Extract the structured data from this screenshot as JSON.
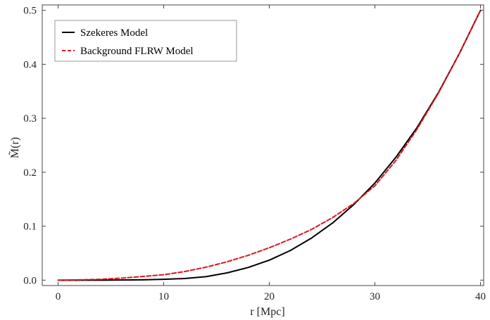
{
  "chart_data": {
    "type": "line",
    "xlabel": "r [Mpc]",
    "ylabel": "M̃(r)",
    "xlim": [
      -1.5,
      40.3
    ],
    "ylim": [
      -0.01,
      0.51
    ],
    "xticks": [
      0,
      10,
      20,
      30,
      40
    ],
    "xtick_labels": [
      "0",
      "10",
      "20",
      "30",
      "40"
    ],
    "yticks": [
      0.0,
      0.1,
      0.2,
      0.3,
      0.4,
      0.5
    ],
    "ytick_labels": [
      "0.0",
      "0.1",
      "0.2",
      "0.3",
      "0.4",
      "0.5"
    ],
    "grid": false,
    "legend_position": "top-left",
    "series": [
      {
        "name": "Szekeres Model",
        "color": "#000000",
        "style": "solid",
        "x": [
          0,
          2,
          4,
          6,
          8,
          10,
          12,
          14,
          16,
          18,
          20,
          22,
          24,
          26,
          28,
          30,
          32,
          34,
          36,
          38,
          40
        ],
        "y": [
          0.0,
          0.0,
          0.0,
          0.0003,
          0.0006,
          0.0015,
          0.003,
          0.0065,
          0.0135,
          0.0235,
          0.037,
          0.055,
          0.078,
          0.106,
          0.14,
          0.18,
          0.228,
          0.283,
          0.347,
          0.42,
          0.5
        ]
      },
      {
        "name": "Background FLRW Model",
        "color": "#e0141e",
        "style": "dashed",
        "x": [
          0,
          2,
          4,
          6,
          8,
          10,
          12,
          14,
          16,
          18,
          20,
          22,
          24,
          26,
          28,
          30,
          32,
          34,
          36,
          38,
          40
        ],
        "y": [
          0.0,
          0.0006,
          0.0016,
          0.0037,
          0.0068,
          0.01,
          0.016,
          0.024,
          0.034,
          0.046,
          0.06,
          0.076,
          0.094,
          0.116,
          0.142,
          0.175,
          0.222,
          0.28,
          0.346,
          0.42,
          0.5
        ]
      }
    ]
  }
}
